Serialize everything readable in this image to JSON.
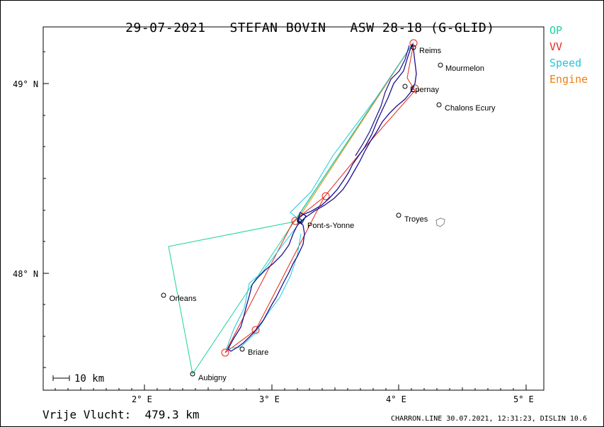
{
  "header": {
    "date": "29-07-2021",
    "pilot": "STEFAN BOVIN",
    "glider": "ASW 28-18 (G-GLID)"
  },
  "legend": [
    {
      "label": "OP",
      "color": "#19d3a0"
    },
    {
      "label": "VV",
      "color": "#e8261a"
    },
    {
      "label": "Speed",
      "color": "#1ec8e0"
    },
    {
      "label": "Engine",
      "color": "#f07d10"
    }
  ],
  "axes": {
    "lat_labels": [
      "49° N",
      "48° N"
    ],
    "lon_labels": [
      "2° E",
      "3° E",
      "4° E",
      "5° E"
    ]
  },
  "towns": [
    {
      "name": "Reims"
    },
    {
      "name": "Mourmelon"
    },
    {
      "name": "Epernay"
    },
    {
      "name": "Chalons Ecury"
    },
    {
      "name": "Pont-s-Yonne"
    },
    {
      "name": "Troyes"
    },
    {
      "name": "Orleans"
    },
    {
      "name": "Briare"
    },
    {
      "name": "Aubigny"
    }
  ],
  "scale_bar": {
    "label": "10 km"
  },
  "footer": {
    "distance": "Vrije Vlucht:  479.3 km",
    "source": "CHARRON.LINE 30.07.2021, 12:31:23, DISLIN 10.6"
  },
  "colors": {
    "track": "#1a0f8c",
    "op_line": "#19d3a0",
    "vv_line": "#e8261a",
    "speed_line": "#1ec8e0",
    "engine_line": "#f07d10",
    "axis": "#000000"
  }
}
